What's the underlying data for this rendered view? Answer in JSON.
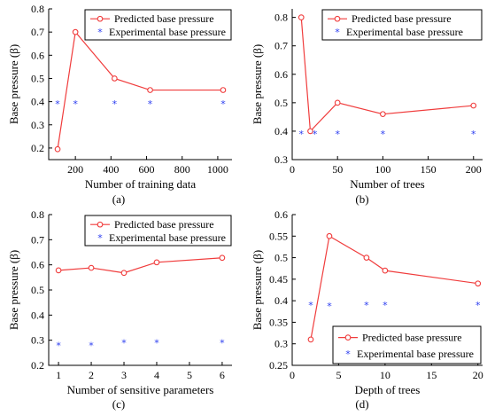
{
  "colors": {
    "predicted": "#f03c3c",
    "experimental": "#2a3cf0"
  },
  "legend": {
    "predicted": "Predicted base pressure",
    "experimental": "Experimental base pressure",
    "experimental_marker": "*"
  },
  "chart_data": [
    {
      "id": "a",
      "type": "line",
      "panel_label": "(a)",
      "xlabel": "Number of training data",
      "ylabel": "Base pressure (β)",
      "xlim": [
        50,
        1080
      ],
      "ylim": [
        0.15,
        0.8
      ],
      "xticks": [
        200,
        400,
        600,
        800,
        1000
      ],
      "yticks": [
        0.2,
        0.3,
        0.4,
        0.5,
        0.6,
        0.7,
        0.8
      ],
      "legend_position": "top-right",
      "series": [
        {
          "name": "Predicted base pressure",
          "x": [
            100,
            200,
            420,
            620,
            1030
          ],
          "y": [
            0.195,
            0.7,
            0.5,
            0.45,
            0.45
          ]
        },
        {
          "name": "Experimental base pressure",
          "x": [
            100,
            200,
            420,
            620,
            1030
          ],
          "y": [
            0.39,
            0.39,
            0.39,
            0.39,
            0.39
          ]
        }
      ]
    },
    {
      "id": "b",
      "type": "line",
      "panel_label": "(b)",
      "xlabel": "Number of trees",
      "ylabel": "Base pressure (β)",
      "xlim": [
        0,
        210
      ],
      "ylim": [
        0.3,
        0.83
      ],
      "xticks": [
        0,
        50,
        100,
        150,
        200
      ],
      "yticks": [
        0.3,
        0.4,
        0.5,
        0.6,
        0.7,
        0.8
      ],
      "legend_position": "top-right",
      "series": [
        {
          "name": "Predicted base pressure",
          "x": [
            10,
            20,
            50,
            100,
            200
          ],
          "y": [
            0.8,
            0.4,
            0.5,
            0.46,
            0.49
          ]
        },
        {
          "name": "Experimental base pressure",
          "x": [
            10,
            25,
            50,
            100,
            200
          ],
          "y": [
            0.39,
            0.39,
            0.39,
            0.39,
            0.39
          ]
        }
      ]
    },
    {
      "id": "c",
      "type": "line",
      "panel_label": "(c)",
      "xlabel": "Number of sensitive parameters",
      "ylabel": "Base pressure (β)",
      "xlim": [
        0.7,
        6.3
      ],
      "ylim": [
        0.2,
        0.8
      ],
      "xticks": [
        1,
        2,
        3,
        4,
        5,
        6
      ],
      "yticks": [
        0.2,
        0.3,
        0.4,
        0.5,
        0.6,
        0.7,
        0.8
      ],
      "legend_position": "top-right",
      "series": [
        {
          "name": "Predicted base pressure",
          "x": [
            1,
            2,
            3,
            4,
            6
          ],
          "y": [
            0.578,
            0.588,
            0.568,
            0.61,
            0.628
          ]
        },
        {
          "name": "Experimental base pressure",
          "x": [
            1,
            2,
            3,
            4,
            6
          ],
          "y": [
            0.28,
            0.28,
            0.29,
            0.29,
            0.29
          ]
        }
      ]
    },
    {
      "id": "d",
      "type": "line",
      "panel_label": "(d)",
      "xlabel": "Depth of trees",
      "ylabel": "Base pressure (β)",
      "xlim": [
        0,
        20.5
      ],
      "ylim": [
        0.25,
        0.6
      ],
      "xticks": [
        0,
        5,
        10,
        15,
        20
      ],
      "yticks": [
        0.25,
        0.3,
        0.35,
        0.4,
        0.45,
        0.5,
        0.55,
        0.6
      ],
      "legend_position": "bottom-right",
      "series": [
        {
          "name": "Predicted base pressure",
          "x": [
            2,
            4,
            8,
            10,
            20
          ],
          "y": [
            0.31,
            0.55,
            0.5,
            0.47,
            0.44
          ]
        },
        {
          "name": "Experimental base pressure",
          "x": [
            2,
            4,
            8,
            10,
            20
          ],
          "y": [
            0.39,
            0.388,
            0.39,
            0.39,
            0.39
          ]
        }
      ]
    }
  ]
}
